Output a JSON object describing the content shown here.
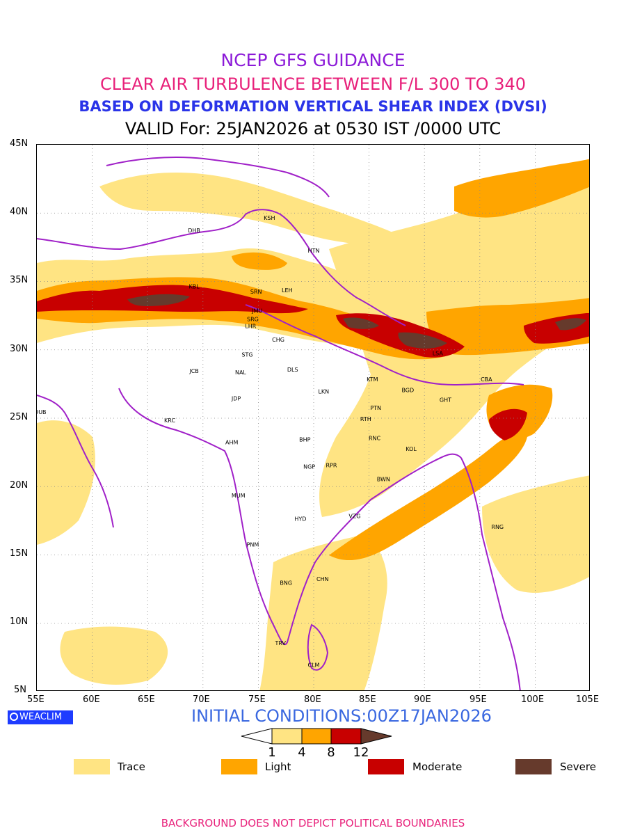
{
  "titles": {
    "line1": "NCEP GFS GUIDANCE",
    "line2": "CLEAR AIR TURBULENCE BETWEEN F/L 300 TO 340",
    "line3": "BASED ON DEFORMATION VERTICAL SHEAR INDEX (DVSI)",
    "line4": "VALID For: 25JAN2026 at 0530 IST /0000 UTC"
  },
  "colors": {
    "title1": "#8c1ad8",
    "title2": "#e8207a",
    "title3": "#2a34e8",
    "title4": "#000000",
    "trace": "#ffe483",
    "light": "#ffa500",
    "moderate": "#c80000",
    "severe": "#663a2c",
    "boundary": "#a020c8",
    "footer": "#e8207a"
  },
  "axes": {
    "lat_labels": [
      "45N",
      "40N",
      "35N",
      "30N",
      "25N",
      "20N",
      "15N",
      "10N",
      "5N"
    ],
    "lon_labels": [
      "55E",
      "60E",
      "65E",
      "70E",
      "75E",
      "80E",
      "85E",
      "90E",
      "95E",
      "100E",
      "105E"
    ]
  },
  "cities": [
    {
      "code": "KSH",
      "lon": 76.0,
      "lat": 39.5
    },
    {
      "code": "DHB",
      "lon": 69.2,
      "lat": 38.6
    },
    {
      "code": "HTN",
      "lon": 80.0,
      "lat": 37.1
    },
    {
      "code": "KBL",
      "lon": 69.2,
      "lat": 34.5
    },
    {
      "code": "SRN",
      "lon": 74.8,
      "lat": 34.1
    },
    {
      "code": "LEH",
      "lon": 77.6,
      "lat": 34.2
    },
    {
      "code": "JMU",
      "lon": 74.9,
      "lat": 32.7
    },
    {
      "code": "SRG",
      "lon": 74.5,
      "lat": 32.1
    },
    {
      "code": "LHR",
      "lon": 74.3,
      "lat": 31.6
    },
    {
      "code": "CHG",
      "lon": 76.8,
      "lat": 30.6
    },
    {
      "code": "STG",
      "lon": 74.0,
      "lat": 29.5
    },
    {
      "code": "DLS",
      "lon": 78.1,
      "lat": 28.4
    },
    {
      "code": "JCB",
      "lon": 69.2,
      "lat": 28.3
    },
    {
      "code": "NAL",
      "lon": 73.4,
      "lat": 28.2
    },
    {
      "code": "LSA",
      "lon": 91.2,
      "lat": 29.6
    },
    {
      "code": "KTM",
      "lon": 85.3,
      "lat": 27.7
    },
    {
      "code": "BGD",
      "lon": 88.5,
      "lat": 26.9
    },
    {
      "code": "CBA",
      "lon": 95.6,
      "lat": 27.7
    },
    {
      "code": "JDP",
      "lon": 73.0,
      "lat": 26.3
    },
    {
      "code": "LKN",
      "lon": 80.9,
      "lat": 26.8
    },
    {
      "code": "GHT",
      "lon": 91.9,
      "lat": 26.2
    },
    {
      "code": "PTN",
      "lon": 85.6,
      "lat": 25.6
    },
    {
      "code": "DUB",
      "lon": 55.3,
      "lat": 25.3
    },
    {
      "code": "KRC",
      "lon": 67.0,
      "lat": 24.7
    },
    {
      "code": "RTH",
      "lon": 84.7,
      "lat": 24.8
    },
    {
      "code": "BHP",
      "lon": 79.2,
      "lat": 23.3
    },
    {
      "code": "AHM",
      "lon": 72.6,
      "lat": 23.1
    },
    {
      "code": "RNC",
      "lon": 85.5,
      "lat": 23.4
    },
    {
      "code": "KOL",
      "lon": 88.8,
      "lat": 22.6
    },
    {
      "code": "NGP",
      "lon": 79.6,
      "lat": 21.3
    },
    {
      "code": "RPR",
      "lon": 81.6,
      "lat": 21.4
    },
    {
      "code": "BWN",
      "lon": 86.3,
      "lat": 20.4
    },
    {
      "code": "MUM",
      "lon": 73.2,
      "lat": 19.2
    },
    {
      "code": "HYD",
      "lon": 78.8,
      "lat": 17.5
    },
    {
      "code": "VZG",
      "lon": 83.7,
      "lat": 17.7
    },
    {
      "code": "RNG",
      "lon": 96.6,
      "lat": 16.9
    },
    {
      "code": "PNM",
      "lon": 74.5,
      "lat": 15.6
    },
    {
      "code": "CHN",
      "lon": 80.8,
      "lat": 13.1
    },
    {
      "code": "BNG",
      "lon": 77.5,
      "lat": 12.8
    },
    {
      "code": "TRV",
      "lon": 77.0,
      "lat": 8.4
    },
    {
      "code": "CLM",
      "lon": 80.0,
      "lat": 6.8
    }
  ],
  "bottom": {
    "brand": "WEACLIM",
    "initial_conditions": "INITIAL CONDITIONS:00Z17JAN2026"
  },
  "colorbar": {
    "thresholds": [
      "1",
      "4",
      "8",
      "12"
    ]
  },
  "legend": {
    "trace": "Trace",
    "light": "Light",
    "moderate": "Moderate",
    "severe": "Severe"
  },
  "footer": "BACKGROUND DOES NOT DEPICT POLITICAL BOUNDARIES"
}
